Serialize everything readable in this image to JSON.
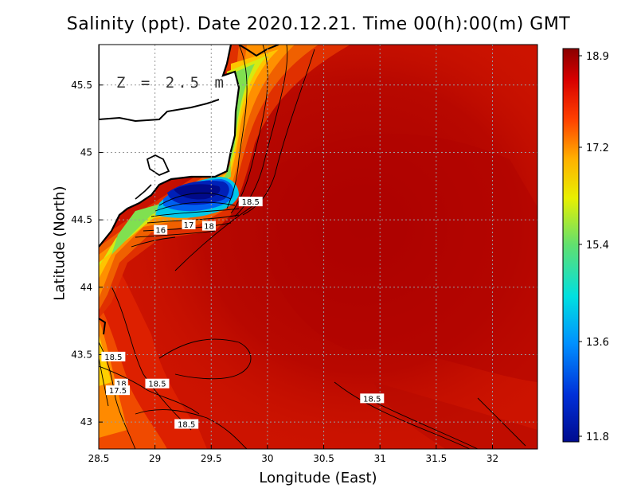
{
  "title": "Salinity (ppt). Date 2020.12.21. Time 00(h):00(m) GMT",
  "depth_label": "Z = 2.5 m",
  "chart_data": {
    "type": "heatmap",
    "xlabel": "Longitude (East)",
    "ylabel": "Latitude (North)",
    "xlim": [
      28.5,
      32.4
    ],
    "ylim": [
      42.8,
      45.8
    ],
    "x_ticks": [
      "28.5",
      "29",
      "29.5",
      "30",
      "30.5",
      "31",
      "31.5",
      "32"
    ],
    "y_ticks": [
      "43",
      "43.5",
      "44",
      "44.5",
      "45",
      "45.5"
    ],
    "grid": true,
    "colorbar": {
      "min": 11.8,
      "max": 18.9,
      "ticks": [
        "11.8",
        "13.6",
        "15.4",
        "17.2",
        "18.9"
      ]
    },
    "contour_labels": [
      {
        "text": "18.5",
        "lon": 29.85,
        "lat": 44.63
      },
      {
        "text": "18",
        "lon": 29.48,
        "lat": 44.45
      },
      {
        "text": "17",
        "lon": 29.3,
        "lat": 44.46
      },
      {
        "text": "16",
        "lon": 29.05,
        "lat": 44.42
      },
      {
        "text": "18.5",
        "lon": 28.63,
        "lat": 43.48
      },
      {
        "text": "18",
        "lon": 28.7,
        "lat": 43.28
      },
      {
        "text": "17.5",
        "lon": 28.67,
        "lat": 43.23
      },
      {
        "text": "18.5",
        "lon": 29.02,
        "lat": 43.28
      },
      {
        "text": "18.5",
        "lon": 29.28,
        "lat": 42.98
      },
      {
        "text": "18.5",
        "lon": 30.93,
        "lat": 43.17
      }
    ]
  },
  "colors": {
    "background_sea": "#cc1200",
    "deep_core": "#a30000",
    "land": "#ffffff",
    "plume_low": "#00108f"
  }
}
